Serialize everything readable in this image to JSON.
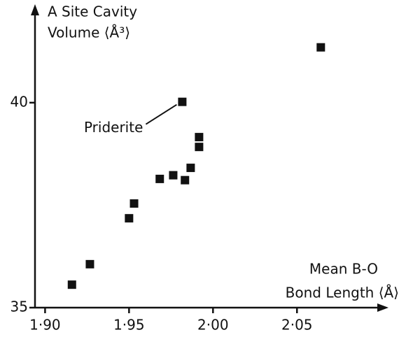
{
  "chart_data": {
    "type": "scatter",
    "y_label": [
      "A Site Cavity",
      "Volume ⟨Å³⟩"
    ],
    "x_label": [
      "Mean B-O",
      "Bond Length ⟨Å⟩"
    ],
    "annotations": [
      {
        "text": "Priderite",
        "point": 8
      }
    ],
    "x": [
      1.916,
      1.9267,
      1.95,
      1.953,
      1.9683,
      1.9763,
      1.9833,
      1.9867,
      1.9817,
      1.9917,
      1.9917,
      2.0642
    ],
    "values": [
      35.56,
      36.06,
      37.18,
      37.54,
      38.14,
      38.23,
      38.11,
      38.41,
      40.02,
      39.16,
      38.92,
      41.35
    ],
    "color": "#111111",
    "xlim": [
      1.894,
      2.102
    ],
    "ylim": [
      35,
      42.3
    ],
    "xticks": [
      {
        "value": 1.9,
        "label": "1·90"
      },
      {
        "value": 1.95,
        "label": "1·95"
      },
      {
        "value": 2.0,
        "label": "2·00"
      },
      {
        "value": 2.05,
        "label": "2·05"
      }
    ],
    "yticks": [
      35,
      40
    ]
  }
}
